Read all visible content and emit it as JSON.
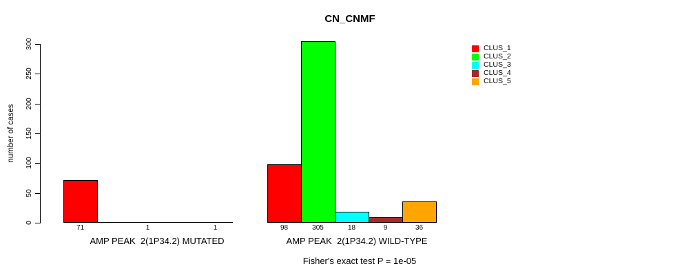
{
  "chart_data": {
    "type": "bar",
    "title": "CN_CNMF",
    "ylabel": "number of cases",
    "ylim": [
      0,
      300
    ],
    "yticks": [
      0,
      50,
      100,
      150,
      200,
      250,
      300
    ],
    "grid": false,
    "legend_position": "right",
    "categories": [
      "CLUS_1",
      "CLUS_2",
      "CLUS_3",
      "CLUS_4",
      "CLUS_5"
    ],
    "series_colors": [
      "#ff0000",
      "#00ff00",
      "#00ffff",
      "#a52a2a",
      "#ffa500"
    ],
    "groups": [
      {
        "label": "AMP PEAK  2(1P34.2) MUTATED",
        "values": [
          71,
          0,
          1,
          0,
          1
        ],
        "bar_labels": [
          "71",
          "",
          "1",
          "",
          "1"
        ]
      },
      {
        "label": "AMP PEAK  2(1P34.2) WILD-TYPE",
        "values": [
          98,
          305,
          18,
          9,
          36
        ],
        "bar_labels": [
          "98",
          "305",
          "18",
          "9",
          "36"
        ]
      }
    ],
    "legend": [
      {
        "label": "CLUS_1",
        "color": "#ff0000"
      },
      {
        "label": "CLUS_2",
        "color": "#00ff00"
      },
      {
        "label": "CLUS_3",
        "color": "#00ffff"
      },
      {
        "label": "CLUS_4",
        "color": "#a52a2a"
      },
      {
        "label": "CLUS_5",
        "color": "#ffa500"
      }
    ],
    "footnote": "Fisher's exact test P = 1e-05"
  }
}
